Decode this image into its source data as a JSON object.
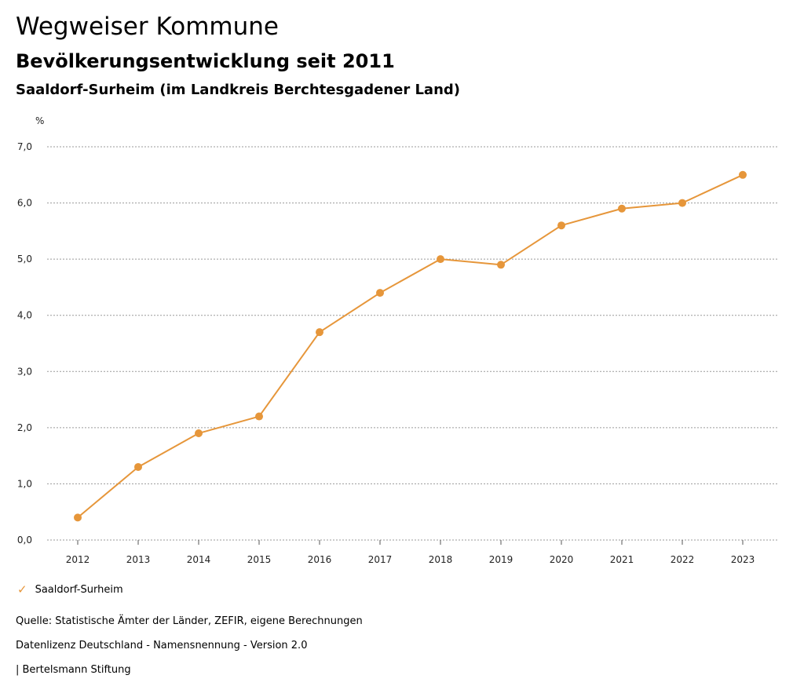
{
  "header": {
    "title": "Wegweiser Kommune",
    "subtitle": "Bevölkerungsentwicklung seit 2011",
    "region": "Saaldorf-Surheim (im Landkreis Berchtesgadener Land)"
  },
  "chart_data": {
    "type": "line",
    "ylabel": "%",
    "ylim": [
      0,
      7
    ],
    "yticks": [
      "0,0",
      "1,0",
      "2,0",
      "3,0",
      "4,0",
      "5,0",
      "6,0",
      "7,0"
    ],
    "grid": true,
    "legend_position": "bottom-left",
    "categories": [
      "2012",
      "2013",
      "2014",
      "2015",
      "2016",
      "2017",
      "2018",
      "2019",
      "2020",
      "2021",
      "2022",
      "2023"
    ],
    "series": [
      {
        "name": "Saaldorf-Surheim",
        "color": "#e6963a",
        "values": [
          0.4,
          1.3,
          1.9,
          2.2,
          3.7,
          4.4,
          5.0,
          4.9,
          5.6,
          5.9,
          6.0,
          6.5
        ]
      }
    ]
  },
  "legend": {
    "icon": "checkmark-icon",
    "label": "Saaldorf-Surheim"
  },
  "footer": {
    "source": "Quelle: Statistische Ämter der Länder, ZEFIR, eigene Berechnungen",
    "license": "Datenlizenz Deutschland - Namensnennung - Version 2.0",
    "publisher": "| Bertelsmann Stiftung"
  }
}
